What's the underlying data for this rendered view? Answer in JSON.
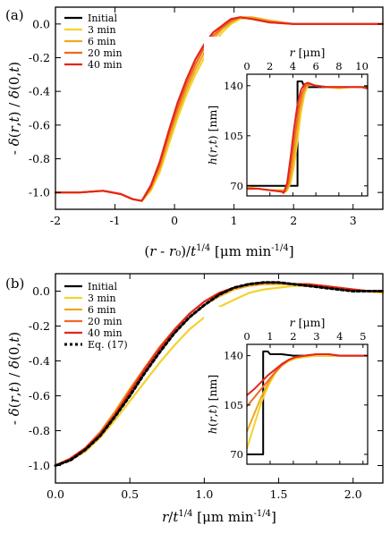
{
  "chart_data": [
    {
      "type": "line",
      "panel_label": "(a)",
      "xlabel": "(r - r₀)/t^{1/4} [μm min^{-1/4}]",
      "ylabel": "- δ(r,t) / δ(0,t)",
      "xlim": [
        -2,
        3.5
      ],
      "ylim": [
        -1.1,
        0.1
      ],
      "xticks": [
        "-2",
        "-1",
        "0",
        "1",
        "2",
        "3"
      ],
      "yticks": [
        "-1.0",
        "-0.8",
        "-0.6",
        "-0.4",
        "-0.2",
        "0.0"
      ],
      "legend": [
        "Initial",
        "3 min",
        "6 min",
        "20 min",
        "40 min"
      ],
      "legend_position": "top-left",
      "series": [
        {
          "name": "3 min",
          "color": "#f5d22e",
          "x": [
            -2,
            -1.6,
            -1.2,
            -0.9,
            -0.7,
            -0.55,
            -0.4,
            -0.25,
            -0.1,
            0.05,
            0.2,
            0.35,
            0.5,
            0.65,
            0.8,
            0.95,
            1.1,
            1.3,
            1.6,
            2.0,
            2.5,
            3.0,
            3.5
          ],
          "y": [
            -1.0,
            -1.0,
            -0.99,
            -1.01,
            -1.04,
            -1.05,
            -0.99,
            -0.88,
            -0.72,
            -0.56,
            -0.42,
            -0.3,
            -0.2,
            -0.12,
            -0.05,
            0.0,
            0.03,
            0.04,
            0.02,
            0.0,
            0.0,
            0.0,
            0.0
          ]
        },
        {
          "name": "6 min",
          "color": "#f0a81e",
          "x": [
            -2,
            -1.6,
            -1.2,
            -0.9,
            -0.7,
            -0.55,
            -0.4,
            -0.25,
            -0.1,
            0.05,
            0.2,
            0.35,
            0.5,
            0.65,
            0.8,
            0.95,
            1.1,
            1.3,
            1.6,
            2.0,
            2.5,
            3.0,
            3.5
          ],
          "y": [
            -1.0,
            -1.0,
            -0.99,
            -1.01,
            -1.04,
            -1.05,
            -0.98,
            -0.86,
            -0.69,
            -0.53,
            -0.39,
            -0.27,
            -0.17,
            -0.09,
            -0.03,
            0.01,
            0.04,
            0.04,
            0.02,
            0.0,
            0.0,
            0.0,
            0.0
          ]
        },
        {
          "name": "20 min",
          "color": "#ee6a22",
          "x": [
            -2,
            -1.6,
            -1.2,
            -0.9,
            -0.7,
            -0.55,
            -0.4,
            -0.25,
            -0.1,
            0.05,
            0.2,
            0.35,
            0.5,
            0.65,
            0.8,
            0.95,
            1.1,
            1.3,
            1.6,
            2.0,
            2.5,
            3.0,
            3.5
          ],
          "y": [
            -1.0,
            -1.0,
            -0.99,
            -1.01,
            -1.04,
            -1.05,
            -0.97,
            -0.84,
            -0.66,
            -0.5,
            -0.36,
            -0.24,
            -0.14,
            -0.07,
            -0.02,
            0.02,
            0.04,
            0.03,
            0.01,
            0.0,
            0.0,
            0.0,
            0.0
          ]
        },
        {
          "name": "40 min",
          "color": "#e3261c",
          "x": [
            -2,
            -1.6,
            -1.2,
            -0.9,
            -0.7,
            -0.55,
            -0.4,
            -0.25,
            -0.1,
            0.05,
            0.2,
            0.35,
            0.5,
            0.65,
            0.8,
            0.95,
            1.1,
            1.3,
            1.6,
            2.0,
            2.5,
            3.0,
            3.5
          ],
          "y": [
            -1.0,
            -1.0,
            -0.99,
            -1.01,
            -1.04,
            -1.05,
            -0.96,
            -0.82,
            -0.64,
            -0.47,
            -0.33,
            -0.21,
            -0.12,
            -0.05,
            -0.01,
            0.03,
            0.04,
            0.03,
            0.01,
            0.0,
            0.0,
            0.0,
            0.0
          ]
        }
      ],
      "inset": {
        "xlabel": "r [μm]",
        "ylabel": "h(r,t) [nm]",
        "xlim": [
          0,
          10.5
        ],
        "ylim": [
          63,
          148
        ],
        "xticks": [
          "0",
          "2",
          "4",
          "6",
          "8",
          "10"
        ],
        "yticks": [
          "70",
          "105",
          "140"
        ],
        "series": [
          {
            "name": "Initial",
            "color": "#000000",
            "x": [
              0,
              1,
              2,
              3,
              4,
              4.4,
              4.4,
              4.8,
              5,
              6,
              7,
              8,
              9,
              10,
              10.5
            ],
            "y": [
              70,
              70,
              70,
              70,
              70,
              70,
              143,
              143,
              139,
              139,
              139,
              139,
              139,
              139,
              139
            ]
          },
          {
            "name": "3 min",
            "color": "#f5d22e",
            "x": [
              0,
              1,
              2,
              3,
              3.5,
              3.8,
              4.1,
              4.4,
              4.7,
              5.0,
              5.3,
              5.6,
              6,
              7,
              8,
              9,
              10,
              10.5
            ],
            "y": [
              69,
              68,
              67,
              67,
              67,
              72,
              84,
              102,
              121,
              134,
              140,
              141,
              140,
              139,
              138,
              139,
              139,
              138
            ]
          },
          {
            "name": "6 min",
            "color": "#f0a81e",
            "x": [
              0,
              1,
              2,
              3,
              3.4,
              3.7,
              4.0,
              4.3,
              4.6,
              4.9,
              5.2,
              5.5,
              6,
              7,
              8,
              9,
              10,
              10.5
            ],
            "y": [
              69,
              68,
              67,
              67,
              66,
              71,
              85,
              104,
              122,
              134,
              140,
              141,
              140,
              139,
              139,
              139,
              139,
              138
            ]
          },
          {
            "name": "20 min",
            "color": "#ee6a22",
            "x": [
              0,
              1,
              2,
              3,
              3.3,
              3.6,
              3.9,
              4.2,
              4.5,
              4.8,
              5.1,
              5.4,
              6,
              7,
              8,
              9,
              10,
              10.5
            ],
            "y": [
              68,
              68,
              67,
              66,
              66,
              72,
              88,
              107,
              124,
              135,
              140,
              141,
              140,
              139,
              139,
              139,
              139,
              138
            ]
          },
          {
            "name": "40 min",
            "color": "#e3261c",
            "x": [
              0,
              1,
              2,
              3,
              3.2,
              3.5,
              3.8,
              4.1,
              4.4,
              4.7,
              5.0,
              5.3,
              6,
              7,
              8,
              9,
              10,
              10.5
            ],
            "y": [
              68,
              68,
              67,
              66,
              65,
              72,
              90,
              110,
              127,
              137,
              141,
              142,
              140,
              139,
              139,
              139,
              139,
              138
            ]
          }
        ]
      }
    },
    {
      "type": "line",
      "panel_label": "(b)",
      "xlabel": "r/t^{1/4} [μm min^{-1/4}]",
      "ylabel": "- δ(r,t) / δ(0,t)",
      "xlim": [
        0,
        2.2
      ],
      "ylim": [
        -1.1,
        0.1
      ],
      "xticks": [
        "0.0",
        "0.5",
        "1.0",
        "1.5",
        "2.0"
      ],
      "yticks": [
        "-1.0",
        "-0.8",
        "-0.6",
        "-0.4",
        "-0.2",
        "0.0"
      ],
      "legend": [
        "Initial",
        "3 min",
        "6 min",
        "20 min",
        "40 min",
        "Eq. (17)"
      ],
      "legend_position": "top-left",
      "series": [
        {
          "name": "3 min",
          "color": "#f5d22e",
          "x": [
            0,
            0.1,
            0.2,
            0.3,
            0.4,
            0.5,
            0.6,
            0.7,
            0.8,
            0.9,
            1.0,
            1.1,
            1.2,
            1.3,
            1.4,
            1.5,
            1.6,
            1.7,
            1.8,
            1.9,
            2.0,
            2.1,
            2.2
          ],
          "y": [
            -1.0,
            -0.97,
            -0.92,
            -0.84,
            -0.74,
            -0.63,
            -0.52,
            -0.41,
            -0.31,
            -0.22,
            -0.15,
            -0.09,
            -0.05,
            -0.01,
            0.01,
            0.02,
            0.03,
            0.03,
            0.03,
            0.02,
            0.01,
            0.0,
            -0.01
          ]
        },
        {
          "name": "6 min",
          "color": "#f0a81e",
          "x": [
            0,
            0.1,
            0.2,
            0.3,
            0.4,
            0.5,
            0.6,
            0.7,
            0.8,
            0.9,
            1.0,
            1.1,
            1.2,
            1.3,
            1.4,
            1.5,
            1.6,
            1.7,
            1.8,
            1.9,
            2.0,
            2.1,
            2.2
          ],
          "y": [
            -1.0,
            -0.96,
            -0.9,
            -0.81,
            -0.69,
            -0.56,
            -0.44,
            -0.33,
            -0.23,
            -0.15,
            -0.08,
            -0.03,
            0.01,
            0.03,
            0.04,
            0.04,
            0.04,
            0.03,
            0.03,
            0.02,
            0.01,
            0.0,
            0.0
          ]
        },
        {
          "name": "20 min",
          "color": "#ee6a22",
          "x": [
            0,
            0.1,
            0.2,
            0.3,
            0.4,
            0.5,
            0.6,
            0.7,
            0.8,
            0.9,
            1.0,
            1.1,
            1.2,
            1.3,
            1.4,
            1.5,
            1.6,
            1.7,
            1.8,
            1.9,
            2.0,
            2.1,
            2.2
          ],
          "y": [
            -1.0,
            -0.96,
            -0.9,
            -0.81,
            -0.7,
            -0.57,
            -0.44,
            -0.32,
            -0.22,
            -0.13,
            -0.06,
            -0.01,
            0.02,
            0.04,
            0.05,
            0.05,
            0.04,
            0.04,
            0.03,
            0.02,
            0.01,
            0.0,
            0.0
          ]
        },
        {
          "name": "40 min",
          "color": "#e3261c",
          "x": [
            0,
            0.1,
            0.2,
            0.3,
            0.4,
            0.5,
            0.6,
            0.7,
            0.8,
            0.9,
            1.0,
            1.1,
            1.2,
            1.3,
            1.4,
            1.5,
            1.6,
            1.7,
            1.8,
            1.9,
            2.0,
            2.1,
            2.2
          ],
          "y": [
            -1.0,
            -0.96,
            -0.9,
            -0.82,
            -0.71,
            -0.58,
            -0.45,
            -0.33,
            -0.22,
            -0.13,
            -0.06,
            -0.01,
            0.02,
            0.04,
            0.05,
            0.05,
            0.04,
            0.04,
            0.03,
            0.02,
            0.01,
            0.0,
            0.0
          ]
        },
        {
          "name": "Eq. (17)",
          "color": "#000000",
          "dashed": true,
          "x": [
            0,
            0.1,
            0.2,
            0.3,
            0.4,
            0.5,
            0.6,
            0.7,
            0.8,
            0.9,
            1.0,
            1.1,
            1.2,
            1.3,
            1.4,
            1.5,
            1.6,
            1.7,
            1.8,
            1.9,
            2.0,
            2.1,
            2.2
          ],
          "y": [
            -1.0,
            -0.97,
            -0.91,
            -0.83,
            -0.72,
            -0.6,
            -0.47,
            -0.35,
            -0.24,
            -0.15,
            -0.08,
            -0.02,
            0.02,
            0.04,
            0.05,
            0.05,
            0.04,
            0.03,
            0.02,
            0.01,
            0.0,
            0.0,
            0.0
          ]
        }
      ],
      "inset": {
        "xlabel": "r [μm]",
        "ylabel": "h(r,t) [nm]",
        "xlim": [
          0,
          5.2
        ],
        "ylim": [
          63,
          148
        ],
        "xticks": [
          "0",
          "1",
          "2",
          "3",
          "4",
          "5"
        ],
        "yticks": [
          "70",
          "105",
          "140"
        ],
        "series": [
          {
            "name": "Initial",
            "color": "#000000",
            "x": [
              0,
              0.3,
              0.6,
              0.7,
              0.7,
              0.9,
              1.0,
              1.5,
              2,
              3,
              4,
              5,
              5.2
            ],
            "y": [
              70,
              70,
              70,
              70,
              143,
              143,
              141,
              141,
              140,
              140,
              140,
              140,
              140
            ]
          },
          {
            "name": "3 min",
            "color": "#f5d22e",
            "x": [
              0,
              0.3,
              0.6,
              0.9,
              1.2,
              1.5,
              1.8,
              2.1,
              2.5,
              3,
              3.5,
              4,
              4.5,
              5,
              5.2
            ],
            "y": [
              74,
              90,
              106,
              118,
              127,
              133,
              136,
              138,
              139,
              140,
              140,
              140,
              140,
              140,
              140
            ]
          },
          {
            "name": "6 min",
            "color": "#f0a81e",
            "x": [
              0,
              0.3,
              0.6,
              0.9,
              1.2,
              1.5,
              1.8,
              2.1,
              2.5,
              3,
              3.5,
              4,
              4.5,
              5,
              5.2
            ],
            "y": [
              86,
              98,
              110,
              120,
              128,
              134,
              137,
              139,
              140,
              141,
              141,
              140,
              140,
              140,
              140
            ]
          },
          {
            "name": "20 min",
            "color": "#ee6a22",
            "x": [
              0,
              0.3,
              0.6,
              0.9,
              1.2,
              1.5,
              1.8,
              2.1,
              2.5,
              3,
              3.5,
              4,
              4.5,
              5,
              5.2
            ],
            "y": [
              104,
              110,
              116,
              122,
              128,
              133,
              137,
              139,
              140,
              141,
              141,
              140,
              140,
              140,
              140
            ]
          },
          {
            "name": "40 min",
            "color": "#e3261c",
            "x": [
              0,
              0.3,
              0.6,
              0.9,
              1.2,
              1.5,
              1.8,
              2.1,
              2.5,
              3,
              3.5,
              4,
              4.5,
              5,
              5.2
            ],
            "y": [
              112,
              116,
              121,
              126,
              130,
              134,
              137,
              139,
              140,
              141,
              141,
              140,
              140,
              140,
              140
            ]
          }
        ]
      }
    }
  ]
}
